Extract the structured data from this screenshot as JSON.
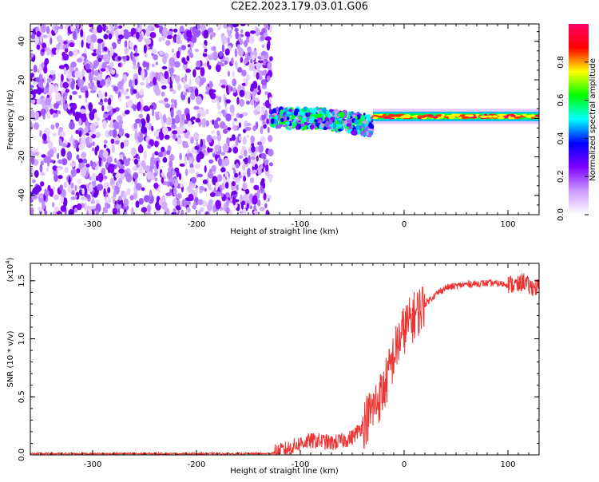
{
  "title": "C2E2.2023.179.03.01.G06",
  "chart_data": [
    {
      "type": "heatmap",
      "xlabel": "Height of straight line (km)",
      "ylabel": "Frequency (Hz)",
      "xlim": [
        -360,
        130
      ],
      "ylim": [
        -50,
        49
      ],
      "xticks": [
        -300,
        -200,
        -100,
        0,
        100
      ],
      "yticks": [
        -40,
        -20,
        0,
        20,
        40
      ],
      "colorbar": {
        "label": "Normalized spectral amplitude",
        "range": [
          0,
          1
        ],
        "ticks": [
          "0.0",
          "0.2",
          "0.4",
          "0.6",
          "0.8"
        ],
        "tick_values": [
          0,
          0.2,
          0.4,
          0.6,
          0.8
        ],
        "colormap": [
          "#ffffff",
          "#cc99ff",
          "#7f00ff",
          "#0000ff",
          "#00ffff",
          "#00ff00",
          "#ffff00",
          "#ff0000",
          "#ff0066"
        ]
      },
      "regions": [
        {
          "x_range": [
            -360,
            -128
          ],
          "f_range": [
            -50,
            49
          ],
          "amplitude": "scattered low (~0.1-0.2)"
        },
        {
          "x_range": [
            -128,
            -30
          ],
          "f_center": 0,
          "f_halfwidth": 5,
          "amplitude": "mixed 0.2-0.6"
        },
        {
          "x_range": [
            -30,
            130
          ],
          "f_center": 1,
          "f_halfwidth": 1.5,
          "amplitude": "high 0.6-1.0"
        }
      ],
      "grid": false
    },
    {
      "type": "line",
      "xlabel": "Height of straight line (km)",
      "ylabel": "SNR (10 * v/v)",
      "multiplier": "(x10",
      "multiplier_exp": "4",
      "xlim": [
        -360,
        130
      ],
      "ylim": [
        0,
        1.65
      ],
      "xticks": [
        -300,
        -200,
        -100,
        0,
        100
      ],
      "yticks": [
        "0.0",
        "0.5",
        "1.0",
        "1.5"
      ],
      "ytick_values": [
        0,
        0.5,
        1.0,
        1.5
      ],
      "color": "#ee3333",
      "series": [
        {
          "x": [
            -360,
            -300,
            -200,
            -130,
            -120,
            -110,
            -100,
            -90,
            -80,
            -70,
            -60,
            -50,
            -40,
            -30,
            -20,
            -15,
            -10,
            -5,
            0,
            10,
            20,
            30,
            40,
            60,
            80,
            100,
            110,
            115,
            120,
            130
          ],
          "y": [
            0.01,
            0.01,
            0.01,
            0.01,
            0.03,
            0.06,
            0.1,
            0.12,
            0.12,
            0.1,
            0.12,
            0.15,
            0.25,
            0.4,
            0.55,
            0.7,
            0.85,
            0.98,
            1.08,
            1.2,
            1.3,
            1.38,
            1.44,
            1.47,
            1.48,
            1.47,
            1.46,
            1.5,
            1.45,
            1.44
          ]
        }
      ],
      "grid": false
    }
  ]
}
